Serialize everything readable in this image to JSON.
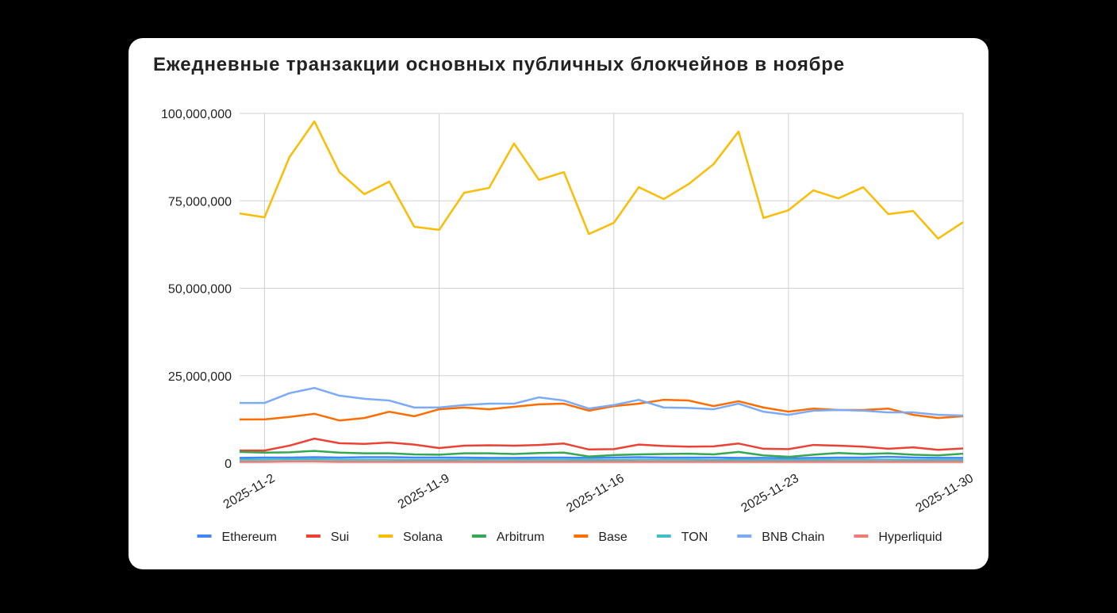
{
  "chart_data": {
    "type": "line",
    "title": "Ежедневные транзакции основных публичных блокчейнов в ноябре",
    "x": [
      "2025-11-1",
      "2025-11-2",
      "2025-11-3",
      "2025-11-4",
      "2025-11-5",
      "2025-11-6",
      "2025-11-7",
      "2025-11-8",
      "2025-11-9",
      "2025-11-10",
      "2025-11-11",
      "2025-11-12",
      "2025-11-13",
      "2025-11-14",
      "2025-11-15",
      "2025-11-16",
      "2025-11-17",
      "2025-11-18",
      "2025-11-19",
      "2025-11-20",
      "2025-11-21",
      "2025-11-22",
      "2025-11-23",
      "2025-11-24",
      "2025-11-25",
      "2025-11-26",
      "2025-11-27",
      "2025-11-28",
      "2025-11-29",
      "2025-11-30"
    ],
    "xticks": [
      "2025-11-2",
      "2025-11-9",
      "2025-11-16",
      "2025-11-23",
      "2025-11-30"
    ],
    "ylim": [
      0,
      100000000
    ],
    "yticks": [
      0,
      {
        "value": 25000000,
        "label": "25,000,000"
      },
      {
        "value": 50000000,
        "label": "50,000,000"
      },
      {
        "value": 75000000,
        "label": "75,000,000"
      },
      {
        "value": 100000000,
        "label": "100,000,000"
      }
    ],
    "grid": true,
    "legend": "bottom",
    "series": [
      {
        "name": "Ethereum",
        "color": "#4285f4",
        "values": [
          1500000,
          1600000,
          1600000,
          1700000,
          1600000,
          1700000,
          1700000,
          1600000,
          1600000,
          1600000,
          1500000,
          1500000,
          1600000,
          1600000,
          1500000,
          1600000,
          1700000,
          1600000,
          1600000,
          1600000,
          1500000,
          1500000,
          1400000,
          1500000,
          1600000,
          1600000,
          1800000,
          1600000,
          1500000,
          1500000
        ]
      },
      {
        "name": "Sui",
        "color": "#ea4335",
        "values": [
          3600000,
          3600000,
          5000000,
          7000000,
          5700000,
          5500000,
          5900000,
          5300000,
          4300000,
          5000000,
          5100000,
          5000000,
          5200000,
          5600000,
          3900000,
          4000000,
          5300000,
          4900000,
          4700000,
          4800000,
          5600000,
          4100000,
          4000000,
          5200000,
          5000000,
          4700000,
          4100000,
          4500000,
          3800000,
          4200000
        ]
      },
      {
        "name": "Solana",
        "color": "#fbbc04",
        "values": [
          71400000,
          70300000,
          87500000,
          97700000,
          83200000,
          76900000,
          80500000,
          67600000,
          66700000,
          77300000,
          78700000,
          91400000,
          81000000,
          83200000,
          65500000,
          68700000,
          78900000,
          75500000,
          79800000,
          85500000,
          94800000,
          70100000,
          72300000,
          78000000,
          75700000,
          78900000,
          71200000,
          72100000,
          64200000,
          68900000
        ]
      },
      {
        "name": "Arbitrum",
        "color": "#34a853",
        "values": [
          3200000,
          3000000,
          3100000,
          3500000,
          3000000,
          2800000,
          2800000,
          2500000,
          2400000,
          2800000,
          2800000,
          2600000,
          2900000,
          3000000,
          1900000,
          2300000,
          2500000,
          2600000,
          2700000,
          2500000,
          3200000,
          2200000,
          1800000,
          2400000,
          2900000,
          2600000,
          2800000,
          2400000,
          2200000,
          2700000
        ]
      },
      {
        "name": "Base",
        "color": "#ff6d01",
        "values": [
          12500000,
          12500000,
          13200000,
          14100000,
          12200000,
          12900000,
          14700000,
          13400000,
          15400000,
          15900000,
          15400000,
          16100000,
          16800000,
          17000000,
          15000000,
          16300000,
          17000000,
          18100000,
          17900000,
          16300000,
          17700000,
          15900000,
          14700000,
          15600000,
          15200000,
          15200000,
          15600000,
          13800000,
          12900000,
          13400000
        ]
      },
      {
        "name": "TON",
        "color": "#46bdc6",
        "values": [
          1000000,
          1000000,
          1100000,
          1100000,
          1000000,
          1000000,
          1000000,
          900000,
          900000,
          1000000,
          1000000,
          1000000,
          1000000,
          1000000,
          900000,
          900000,
          1000000,
          1000000,
          1000000,
          900000,
          1000000,
          900000,
          900000,
          900000,
          1000000,
          1000000,
          1000000,
          900000,
          900000,
          900000
        ]
      },
      {
        "name": "BNB Chain",
        "color": "#7baaf7",
        "values": [
          17200000,
          17200000,
          20000000,
          21500000,
          19300000,
          18400000,
          17900000,
          15900000,
          15900000,
          16600000,
          17000000,
          17000000,
          18800000,
          17900000,
          15600000,
          16600000,
          18100000,
          15900000,
          15800000,
          15400000,
          17000000,
          14700000,
          13800000,
          15000000,
          15200000,
          15000000,
          14500000,
          14500000,
          13800000,
          13600000
        ]
      },
      {
        "name": "Hyperliquid",
        "color": "#f07b72",
        "values": [
          400000,
          400000,
          500000,
          500000,
          400000,
          400000,
          400000,
          400000,
          400000,
          400000,
          400000,
          400000,
          400000,
          400000,
          400000,
          400000,
          400000,
          400000,
          400000,
          400000,
          400000,
          400000,
          400000,
          400000,
          400000,
          400000,
          400000,
          400000,
          400000,
          400000
        ]
      }
    ]
  }
}
